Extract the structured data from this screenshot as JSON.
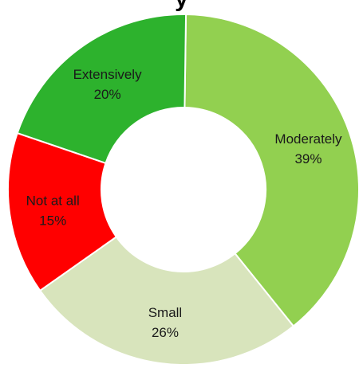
{
  "chart_data": {
    "type": "pie",
    "variant": "donut",
    "title": "y",
    "categories": [
      "Moderately",
      "Small",
      "Not at all",
      "Extensively"
    ],
    "values": [
      39,
      26,
      15,
      20
    ],
    "value_labels": [
      "39%",
      "26%",
      "15%",
      "20%"
    ],
    "colors": [
      "#92d050",
      "#d8e4bc",
      "#ff0000",
      "#2db22d"
    ],
    "legend": "none"
  }
}
